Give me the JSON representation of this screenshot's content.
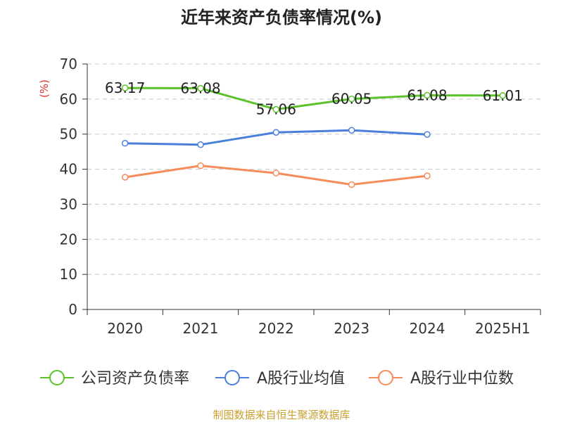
{
  "chart_data": {
    "type": "line",
    "title": "近年来资产负债率情况(%)",
    "ylabel": "(%)",
    "xlabel": "",
    "ylim": [
      0,
      70
    ],
    "yticks": [
      0,
      10,
      20,
      30,
      40,
      50,
      60,
      70
    ],
    "categories": [
      "2020",
      "2021",
      "2022",
      "2023",
      "2024",
      "2025H1"
    ],
    "grid": true,
    "legend_position": "bottom",
    "series": [
      {
        "name": "公司资产负债率",
        "color": "#5cc22b",
        "values": [
          63.17,
          63.08,
          57.06,
          60.05,
          61.08,
          61.01
        ],
        "labels": [
          "63.17",
          "63.08",
          "57.06",
          "60.05",
          "61.08",
          "61.01"
        ]
      },
      {
        "name": "A股行业均值",
        "color": "#4a7fdc",
        "values": [
          47.4,
          47.0,
          50.5,
          51.1,
          49.9,
          null
        ]
      },
      {
        "name": "A股行业中位数",
        "color": "#f58c5a",
        "values": [
          37.7,
          41.0,
          38.9,
          35.6,
          38.1,
          null
        ]
      }
    ]
  },
  "footer": "制图数据来自恒生聚源数据库"
}
